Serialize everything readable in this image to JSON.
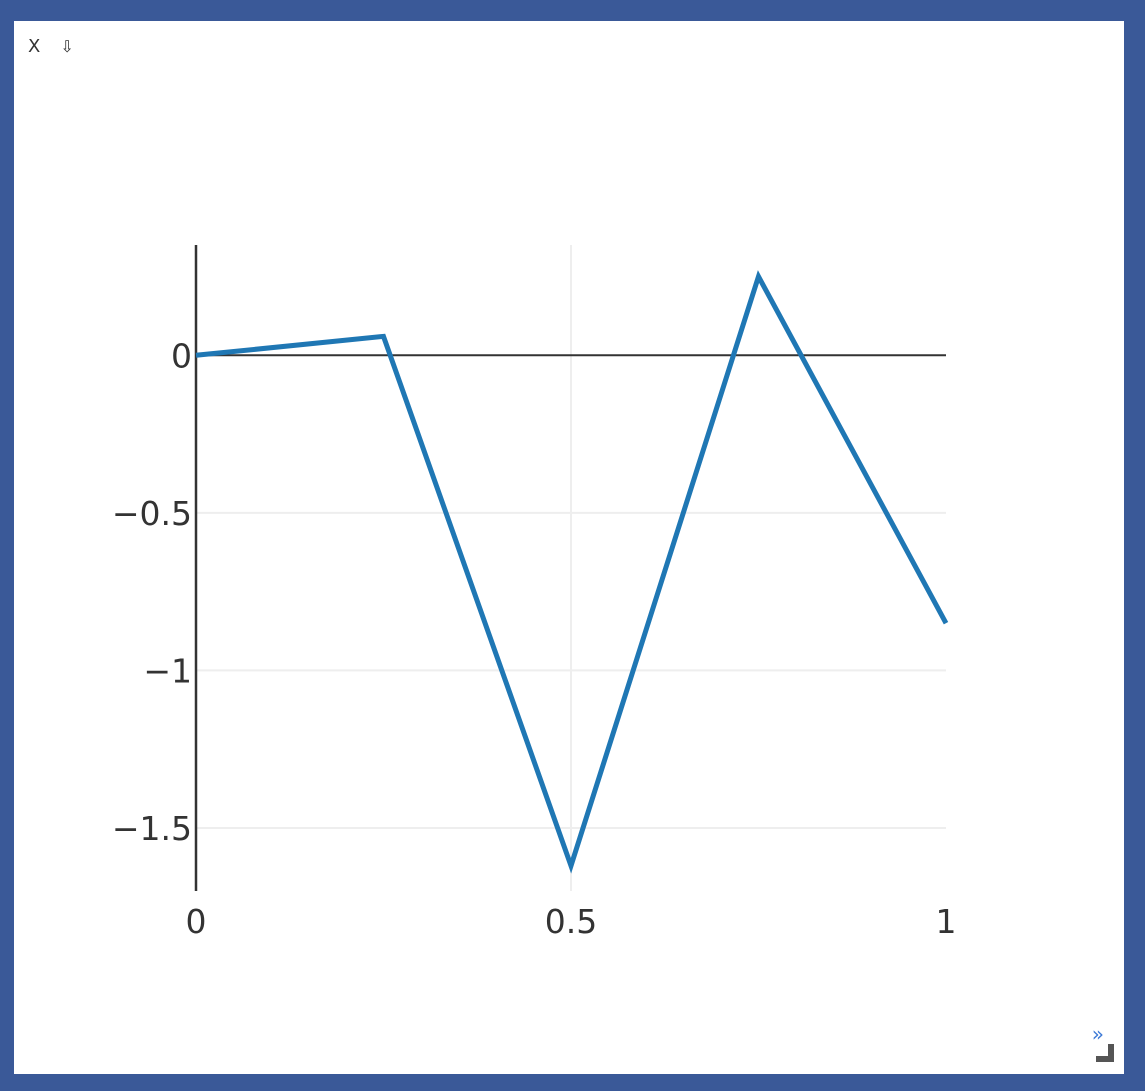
{
  "toolbar": {
    "close_label": "X",
    "download_label": "⇩"
  },
  "footer": {
    "expand_label": "»"
  },
  "colors": {
    "frame": "#3a5998",
    "line": "#1f77b4",
    "grid": "#eeeeee",
    "axis": "#333333"
  },
  "chart_data": {
    "type": "line",
    "x": [
      0,
      0.25,
      0.5,
      0.75,
      1
    ],
    "y": [
      0,
      0.06,
      -1.62,
      0.25,
      -0.85
    ],
    "xlim": [
      0,
      1
    ],
    "ylim": [
      -1.7,
      0.35
    ],
    "x_ticks": [
      0,
      0.5,
      1
    ],
    "x_tick_labels": [
      "0",
      "0.5",
      "1"
    ],
    "y_ticks": [
      0,
      -0.5,
      -1,
      -1.5
    ],
    "y_tick_labels": [
      "0",
      "−0.5",
      "−1",
      "−1.5"
    ],
    "grid": true,
    "legend": false
  }
}
